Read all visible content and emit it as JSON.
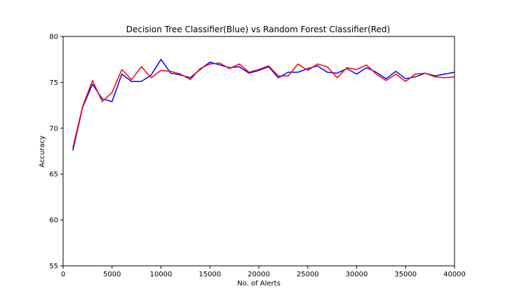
{
  "chart_data": {
    "type": "line",
    "title": "Decision Tree Classifier(Blue) vs Random Forest Classifier(Red)",
    "xlabel": "No. of Alerts",
    "ylabel": "Accuracy",
    "xlim": [
      0,
      40000
    ],
    "ylim": [
      55,
      80
    ],
    "xticks": [
      0,
      5000,
      10000,
      15000,
      20000,
      25000,
      30000,
      35000,
      40000
    ],
    "yticks": [
      55,
      60,
      65,
      70,
      75,
      80
    ],
    "grid": false,
    "x": [
      1000,
      2000,
      3000,
      4000,
      5000,
      6000,
      7000,
      8000,
      9000,
      10000,
      11000,
      12000,
      13000,
      14000,
      15000,
      16000,
      17000,
      18000,
      19000,
      20000,
      21000,
      22000,
      23000,
      24000,
      25000,
      26000,
      27000,
      28000,
      29000,
      30000,
      31000,
      32000,
      33000,
      34000,
      35000,
      36000,
      37000,
      38000,
      39000,
      40000
    ],
    "series": [
      {
        "color": "#0000ff",
        "values": [
          67.6,
          72.3,
          74.8,
          73.2,
          72.9,
          75.9,
          75.1,
          75.1,
          75.8,
          77.5,
          76.0,
          75.8,
          75.5,
          76.4,
          77.2,
          76.9,
          76.6,
          76.7,
          76.0,
          76.3,
          76.7,
          75.5,
          76.1,
          76.1,
          76.5,
          76.8,
          76.1,
          76.0,
          76.5,
          75.9,
          76.6,
          76.1,
          75.4,
          76.2,
          75.4,
          75.6,
          76.0,
          75.7,
          75.9,
          76.1
        ]
      },
      {
        "color": "#ff0000",
        "values": [
          67.9,
          72.4,
          75.2,
          72.9,
          73.9,
          76.4,
          75.3,
          76.7,
          75.5,
          76.3,
          76.2,
          75.9,
          75.3,
          76.5,
          77.0,
          77.1,
          76.5,
          77.0,
          76.1,
          76.4,
          76.8,
          75.7,
          75.7,
          77.0,
          76.3,
          77.0,
          76.7,
          75.5,
          76.6,
          76.4,
          76.9,
          75.9,
          75.2,
          75.9,
          75.1,
          75.9,
          76.0,
          75.6,
          75.5,
          75.6
        ]
      }
    ]
  }
}
